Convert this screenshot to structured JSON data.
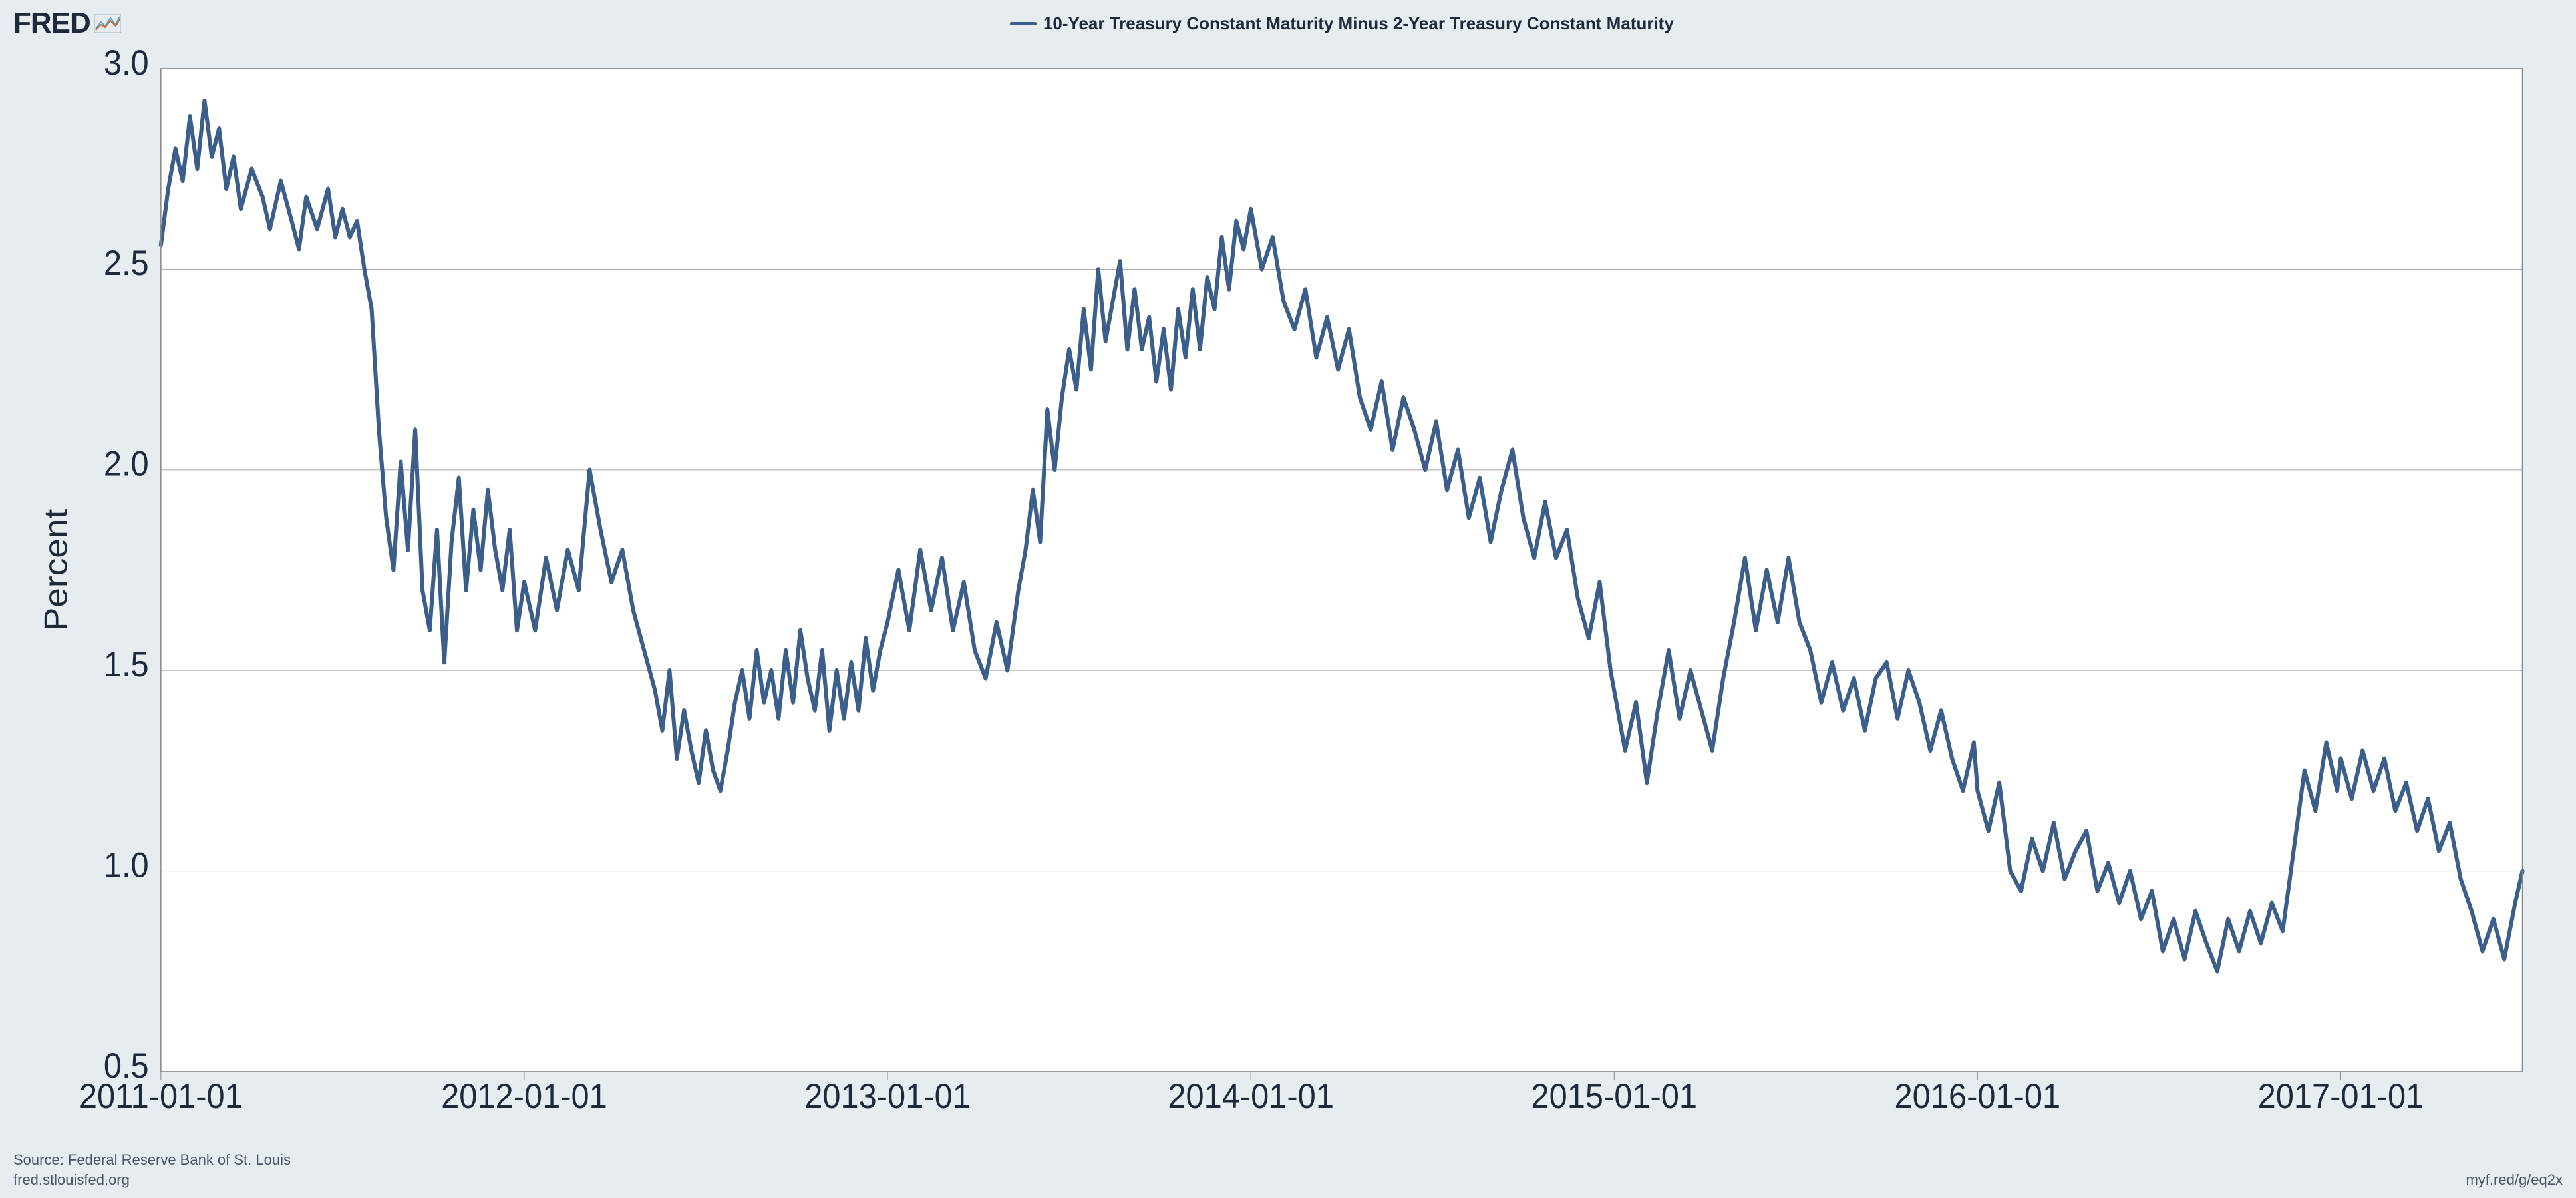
{
  "logo_text": "FRED",
  "legend_label": "10-Year Treasury Constant Maturity Minus 2-Year Treasury Constant Maturity",
  "source_text": "Source: Federal Reserve Bank of St. Louis",
  "site_text": "fred.stlouisfed.org",
  "shortlink_text": "myf.red/g/eq2x",
  "chart": {
    "type": "line",
    "background_color": "#e6ecf0",
    "plot_background_color": "#ffffff",
    "grid_color": "#b0b0b0",
    "axis_color": "#888888",
    "line_color": "#3b5f8a",
    "line_width": 3,
    "ylabel": "Percent",
    "ylabel_fontsize": 22,
    "tick_fontsize": 22,
    "tick_color": "#1e2a3a",
    "ylim": [
      0.5,
      3.0
    ],
    "yticks": [
      0.5,
      1.0,
      1.5,
      2.0,
      2.5,
      3.0
    ],
    "ytick_labels": [
      "0.5",
      "1.0",
      "1.5",
      "2.0",
      "2.5",
      "3.0"
    ],
    "x_range_years": [
      2011.0,
      2017.5
    ],
    "xticks_years": [
      2011,
      2012,
      2013,
      2014,
      2015,
      2016,
      2017
    ],
    "xtick_labels": [
      "2011-01-01",
      "2012-01-01",
      "2013-01-01",
      "2014-01-01",
      "2015-01-01",
      "2016-01-01",
      "2017-01-01"
    ],
    "series": [
      {
        "x": 2011.0,
        "y": 2.56
      },
      {
        "x": 2011.02,
        "y": 2.7
      },
      {
        "x": 2011.04,
        "y": 2.8
      },
      {
        "x": 2011.06,
        "y": 2.72
      },
      {
        "x": 2011.08,
        "y": 2.88
      },
      {
        "x": 2011.1,
        "y": 2.75
      },
      {
        "x": 2011.12,
        "y": 2.92
      },
      {
        "x": 2011.14,
        "y": 2.78
      },
      {
        "x": 2011.16,
        "y": 2.85
      },
      {
        "x": 2011.18,
        "y": 2.7
      },
      {
        "x": 2011.2,
        "y": 2.78
      },
      {
        "x": 2011.22,
        "y": 2.65
      },
      {
        "x": 2011.25,
        "y": 2.75
      },
      {
        "x": 2011.28,
        "y": 2.68
      },
      {
        "x": 2011.3,
        "y": 2.6
      },
      {
        "x": 2011.33,
        "y": 2.72
      },
      {
        "x": 2011.36,
        "y": 2.62
      },
      {
        "x": 2011.38,
        "y": 2.55
      },
      {
        "x": 2011.4,
        "y": 2.68
      },
      {
        "x": 2011.43,
        "y": 2.6
      },
      {
        "x": 2011.46,
        "y": 2.7
      },
      {
        "x": 2011.48,
        "y": 2.58
      },
      {
        "x": 2011.5,
        "y": 2.65
      },
      {
        "x": 2011.52,
        "y": 2.58
      },
      {
        "x": 2011.54,
        "y": 2.62
      },
      {
        "x": 2011.56,
        "y": 2.5
      },
      {
        "x": 2011.58,
        "y": 2.4
      },
      {
        "x": 2011.6,
        "y": 2.1
      },
      {
        "x": 2011.62,
        "y": 1.88
      },
      {
        "x": 2011.64,
        "y": 1.75
      },
      {
        "x": 2011.66,
        "y": 2.02
      },
      {
        "x": 2011.68,
        "y": 1.8
      },
      {
        "x": 2011.7,
        "y": 2.1
      },
      {
        "x": 2011.72,
        "y": 1.7
      },
      {
        "x": 2011.74,
        "y": 1.6
      },
      {
        "x": 2011.76,
        "y": 1.85
      },
      {
        "x": 2011.78,
        "y": 1.52
      },
      {
        "x": 2011.8,
        "y": 1.82
      },
      {
        "x": 2011.82,
        "y": 1.98
      },
      {
        "x": 2011.84,
        "y": 1.7
      },
      {
        "x": 2011.86,
        "y": 1.9
      },
      {
        "x": 2011.88,
        "y": 1.75
      },
      {
        "x": 2011.9,
        "y": 1.95
      },
      {
        "x": 2011.92,
        "y": 1.8
      },
      {
        "x": 2011.94,
        "y": 1.7
      },
      {
        "x": 2011.96,
        "y": 1.85
      },
      {
        "x": 2011.98,
        "y": 1.6
      },
      {
        "x": 2012.0,
        "y": 1.72
      },
      {
        "x": 2012.03,
        "y": 1.6
      },
      {
        "x": 2012.06,
        "y": 1.78
      },
      {
        "x": 2012.09,
        "y": 1.65
      },
      {
        "x": 2012.12,
        "y": 1.8
      },
      {
        "x": 2012.15,
        "y": 1.7
      },
      {
        "x": 2012.18,
        "y": 2.0
      },
      {
        "x": 2012.21,
        "y": 1.85
      },
      {
        "x": 2012.24,
        "y": 1.72
      },
      {
        "x": 2012.27,
        "y": 1.8
      },
      {
        "x": 2012.3,
        "y": 1.65
      },
      {
        "x": 2012.33,
        "y": 1.55
      },
      {
        "x": 2012.36,
        "y": 1.45
      },
      {
        "x": 2012.38,
        "y": 1.35
      },
      {
        "x": 2012.4,
        "y": 1.5
      },
      {
        "x": 2012.42,
        "y": 1.28
      },
      {
        "x": 2012.44,
        "y": 1.4
      },
      {
        "x": 2012.46,
        "y": 1.3
      },
      {
        "x": 2012.48,
        "y": 1.22
      },
      {
        "x": 2012.5,
        "y": 1.35
      },
      {
        "x": 2012.52,
        "y": 1.25
      },
      {
        "x": 2012.54,
        "y": 1.2
      },
      {
        "x": 2012.56,
        "y": 1.3
      },
      {
        "x": 2012.58,
        "y": 1.42
      },
      {
        "x": 2012.6,
        "y": 1.5
      },
      {
        "x": 2012.62,
        "y": 1.38
      },
      {
        "x": 2012.64,
        "y": 1.55
      },
      {
        "x": 2012.66,
        "y": 1.42
      },
      {
        "x": 2012.68,
        "y": 1.5
      },
      {
        "x": 2012.7,
        "y": 1.38
      },
      {
        "x": 2012.72,
        "y": 1.55
      },
      {
        "x": 2012.74,
        "y": 1.42
      },
      {
        "x": 2012.76,
        "y": 1.6
      },
      {
        "x": 2012.78,
        "y": 1.48
      },
      {
        "x": 2012.8,
        "y": 1.4
      },
      {
        "x": 2012.82,
        "y": 1.55
      },
      {
        "x": 2012.84,
        "y": 1.35
      },
      {
        "x": 2012.86,
        "y": 1.5
      },
      {
        "x": 2012.88,
        "y": 1.38
      },
      {
        "x": 2012.9,
        "y": 1.52
      },
      {
        "x": 2012.92,
        "y": 1.4
      },
      {
        "x": 2012.94,
        "y": 1.58
      },
      {
        "x": 2012.96,
        "y": 1.45
      },
      {
        "x": 2012.98,
        "y": 1.55
      },
      {
        "x": 2013.0,
        "y": 1.62
      },
      {
        "x": 2013.03,
        "y": 1.75
      },
      {
        "x": 2013.06,
        "y": 1.6
      },
      {
        "x": 2013.09,
        "y": 1.8
      },
      {
        "x": 2013.12,
        "y": 1.65
      },
      {
        "x": 2013.15,
        "y": 1.78
      },
      {
        "x": 2013.18,
        "y": 1.6
      },
      {
        "x": 2013.21,
        "y": 1.72
      },
      {
        "x": 2013.24,
        "y": 1.55
      },
      {
        "x": 2013.27,
        "y": 1.48
      },
      {
        "x": 2013.3,
        "y": 1.62
      },
      {
        "x": 2013.33,
        "y": 1.5
      },
      {
        "x": 2013.36,
        "y": 1.7
      },
      {
        "x": 2013.38,
        "y": 1.8
      },
      {
        "x": 2013.4,
        "y": 1.95
      },
      {
        "x": 2013.42,
        "y": 1.82
      },
      {
        "x": 2013.44,
        "y": 2.15
      },
      {
        "x": 2013.46,
        "y": 2.0
      },
      {
        "x": 2013.48,
        "y": 2.18
      },
      {
        "x": 2013.5,
        "y": 2.3
      },
      {
        "x": 2013.52,
        "y": 2.2
      },
      {
        "x": 2013.54,
        "y": 2.4
      },
      {
        "x": 2013.56,
        "y": 2.25
      },
      {
        "x": 2013.58,
        "y": 2.5
      },
      {
        "x": 2013.6,
        "y": 2.32
      },
      {
        "x": 2013.62,
        "y": 2.42
      },
      {
        "x": 2013.64,
        "y": 2.52
      },
      {
        "x": 2013.66,
        "y": 2.3
      },
      {
        "x": 2013.68,
        "y": 2.45
      },
      {
        "x": 2013.7,
        "y": 2.3
      },
      {
        "x": 2013.72,
        "y": 2.38
      },
      {
        "x": 2013.74,
        "y": 2.22
      },
      {
        "x": 2013.76,
        "y": 2.35
      },
      {
        "x": 2013.78,
        "y": 2.2
      },
      {
        "x": 2013.8,
        "y": 2.4
      },
      {
        "x": 2013.82,
        "y": 2.28
      },
      {
        "x": 2013.84,
        "y": 2.45
      },
      {
        "x": 2013.86,
        "y": 2.3
      },
      {
        "x": 2013.88,
        "y": 2.48
      },
      {
        "x": 2013.9,
        "y": 2.4
      },
      {
        "x": 2013.92,
        "y": 2.58
      },
      {
        "x": 2013.94,
        "y": 2.45
      },
      {
        "x": 2013.96,
        "y": 2.62
      },
      {
        "x": 2013.98,
        "y": 2.55
      },
      {
        "x": 2014.0,
        "y": 2.65
      },
      {
        "x": 2014.03,
        "y": 2.5
      },
      {
        "x": 2014.06,
        "y": 2.58
      },
      {
        "x": 2014.09,
        "y": 2.42
      },
      {
        "x": 2014.12,
        "y": 2.35
      },
      {
        "x": 2014.15,
        "y": 2.45
      },
      {
        "x": 2014.18,
        "y": 2.28
      },
      {
        "x": 2014.21,
        "y": 2.38
      },
      {
        "x": 2014.24,
        "y": 2.25
      },
      {
        "x": 2014.27,
        "y": 2.35
      },
      {
        "x": 2014.3,
        "y": 2.18
      },
      {
        "x": 2014.33,
        "y": 2.1
      },
      {
        "x": 2014.36,
        "y": 2.22
      },
      {
        "x": 2014.39,
        "y": 2.05
      },
      {
        "x": 2014.42,
        "y": 2.18
      },
      {
        "x": 2014.45,
        "y": 2.1
      },
      {
        "x": 2014.48,
        "y": 2.0
      },
      {
        "x": 2014.51,
        "y": 2.12
      },
      {
        "x": 2014.54,
        "y": 1.95
      },
      {
        "x": 2014.57,
        "y": 2.05
      },
      {
        "x": 2014.6,
        "y": 1.88
      },
      {
        "x": 2014.63,
        "y": 1.98
      },
      {
        "x": 2014.66,
        "y": 1.82
      },
      {
        "x": 2014.69,
        "y": 1.95
      },
      {
        "x": 2014.72,
        "y": 2.05
      },
      {
        "x": 2014.75,
        "y": 1.88
      },
      {
        "x": 2014.78,
        "y": 1.78
      },
      {
        "x": 2014.81,
        "y": 1.92
      },
      {
        "x": 2014.84,
        "y": 1.78
      },
      {
        "x": 2014.87,
        "y": 1.85
      },
      {
        "x": 2014.9,
        "y": 1.68
      },
      {
        "x": 2014.93,
        "y": 1.58
      },
      {
        "x": 2014.96,
        "y": 1.72
      },
      {
        "x": 2014.99,
        "y": 1.5
      },
      {
        "x": 2015.0,
        "y": 1.45
      },
      {
        "x": 2015.03,
        "y": 1.3
      },
      {
        "x": 2015.06,
        "y": 1.42
      },
      {
        "x": 2015.09,
        "y": 1.22
      },
      {
        "x": 2015.12,
        "y": 1.4
      },
      {
        "x": 2015.15,
        "y": 1.55
      },
      {
        "x": 2015.18,
        "y": 1.38
      },
      {
        "x": 2015.21,
        "y": 1.5
      },
      {
        "x": 2015.24,
        "y": 1.4
      },
      {
        "x": 2015.27,
        "y": 1.3
      },
      {
        "x": 2015.3,
        "y": 1.48
      },
      {
        "x": 2015.33,
        "y": 1.62
      },
      {
        "x": 2015.36,
        "y": 1.78
      },
      {
        "x": 2015.39,
        "y": 1.6
      },
      {
        "x": 2015.42,
        "y": 1.75
      },
      {
        "x": 2015.45,
        "y": 1.62
      },
      {
        "x": 2015.48,
        "y": 1.78
      },
      {
        "x": 2015.51,
        "y": 1.62
      },
      {
        "x": 2015.54,
        "y": 1.55
      },
      {
        "x": 2015.57,
        "y": 1.42
      },
      {
        "x": 2015.6,
        "y": 1.52
      },
      {
        "x": 2015.63,
        "y": 1.4
      },
      {
        "x": 2015.66,
        "y": 1.48
      },
      {
        "x": 2015.69,
        "y": 1.35
      },
      {
        "x": 2015.72,
        "y": 1.48
      },
      {
        "x": 2015.75,
        "y": 1.52
      },
      {
        "x": 2015.78,
        "y": 1.38
      },
      {
        "x": 2015.81,
        "y": 1.5
      },
      {
        "x": 2015.84,
        "y": 1.42
      },
      {
        "x": 2015.87,
        "y": 1.3
      },
      {
        "x": 2015.9,
        "y": 1.4
      },
      {
        "x": 2015.93,
        "y": 1.28
      },
      {
        "x": 2015.96,
        "y": 1.2
      },
      {
        "x": 2015.99,
        "y": 1.32
      },
      {
        "x": 2016.0,
        "y": 1.2
      },
      {
        "x": 2016.03,
        "y": 1.1
      },
      {
        "x": 2016.06,
        "y": 1.22
      },
      {
        "x": 2016.09,
        "y": 1.0
      },
      {
        "x": 2016.12,
        "y": 0.95
      },
      {
        "x": 2016.15,
        "y": 1.08
      },
      {
        "x": 2016.18,
        "y": 1.0
      },
      {
        "x": 2016.21,
        "y": 1.12
      },
      {
        "x": 2016.24,
        "y": 0.98
      },
      {
        "x": 2016.27,
        "y": 1.05
      },
      {
        "x": 2016.3,
        "y": 1.1
      },
      {
        "x": 2016.33,
        "y": 0.95
      },
      {
        "x": 2016.36,
        "y": 1.02
      },
      {
        "x": 2016.39,
        "y": 0.92
      },
      {
        "x": 2016.42,
        "y": 1.0
      },
      {
        "x": 2016.45,
        "y": 0.88
      },
      {
        "x": 2016.48,
        "y": 0.95
      },
      {
        "x": 2016.51,
        "y": 0.8
      },
      {
        "x": 2016.54,
        "y": 0.88
      },
      {
        "x": 2016.57,
        "y": 0.78
      },
      {
        "x": 2016.6,
        "y": 0.9
      },
      {
        "x": 2016.63,
        "y": 0.82
      },
      {
        "x": 2016.66,
        "y": 0.75
      },
      {
        "x": 2016.69,
        "y": 0.88
      },
      {
        "x": 2016.72,
        "y": 0.8
      },
      {
        "x": 2016.75,
        "y": 0.9
      },
      {
        "x": 2016.78,
        "y": 0.82
      },
      {
        "x": 2016.81,
        "y": 0.92
      },
      {
        "x": 2016.84,
        "y": 0.85
      },
      {
        "x": 2016.87,
        "y": 1.05
      },
      {
        "x": 2016.9,
        "y": 1.25
      },
      {
        "x": 2016.93,
        "y": 1.15
      },
      {
        "x": 2016.96,
        "y": 1.32
      },
      {
        "x": 2016.99,
        "y": 1.2
      },
      {
        "x": 2017.0,
        "y": 1.28
      },
      {
        "x": 2017.03,
        "y": 1.18
      },
      {
        "x": 2017.06,
        "y": 1.3
      },
      {
        "x": 2017.09,
        "y": 1.2
      },
      {
        "x": 2017.12,
        "y": 1.28
      },
      {
        "x": 2017.15,
        "y": 1.15
      },
      {
        "x": 2017.18,
        "y": 1.22
      },
      {
        "x": 2017.21,
        "y": 1.1
      },
      {
        "x": 2017.24,
        "y": 1.18
      },
      {
        "x": 2017.27,
        "y": 1.05
      },
      {
        "x": 2017.3,
        "y": 1.12
      },
      {
        "x": 2017.33,
        "y": 0.98
      },
      {
        "x": 2017.36,
        "y": 0.9
      },
      {
        "x": 2017.39,
        "y": 0.8
      },
      {
        "x": 2017.42,
        "y": 0.88
      },
      {
        "x": 2017.45,
        "y": 0.78
      },
      {
        "x": 2017.48,
        "y": 0.92
      },
      {
        "x": 2017.5,
        "y": 1.0
      }
    ]
  }
}
